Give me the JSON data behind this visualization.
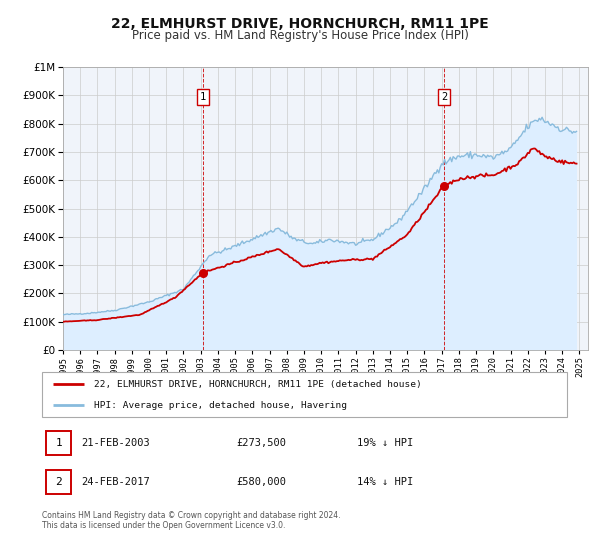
{
  "title": "22, ELMHURST DRIVE, HORNCHURCH, RM11 1PE",
  "subtitle": "Price paid vs. HM Land Registry's House Price Index (HPI)",
  "legend_line1": "22, ELMHURST DRIVE, HORNCHURCH, RM11 1PE (detached house)",
  "legend_line2": "HPI: Average price, detached house, Havering",
  "annotation1_date": "21-FEB-2003",
  "annotation1_price": "£273,500",
  "annotation1_hpi": "19% ↓ HPI",
  "annotation2_date": "24-FEB-2017",
  "annotation2_price": "£580,000",
  "annotation2_hpi": "14% ↓ HPI",
  "footer_line1": "Contains HM Land Registry data © Crown copyright and database right 2024.",
  "footer_line2": "This data is licensed under the Open Government Licence v3.0.",
  "sale1_year": 2003.13,
  "sale1_value": 273500,
  "sale2_year": 2017.14,
  "sale2_value": 580000,
  "property_color": "#cc0000",
  "hpi_color": "#88bbdd",
  "hpi_fill_color": "#ddeeff",
  "vline_color": "#cc0000",
  "grid_color": "#cccccc",
  "background_color": "#ffffff",
  "plot_bg_color": "#f0f4fa",
  "ylim": [
    0,
    1000000
  ],
  "xlim_start": 1995,
  "xlim_end": 2025.5,
  "title_fontsize": 10,
  "subtitle_fontsize": 8.5
}
